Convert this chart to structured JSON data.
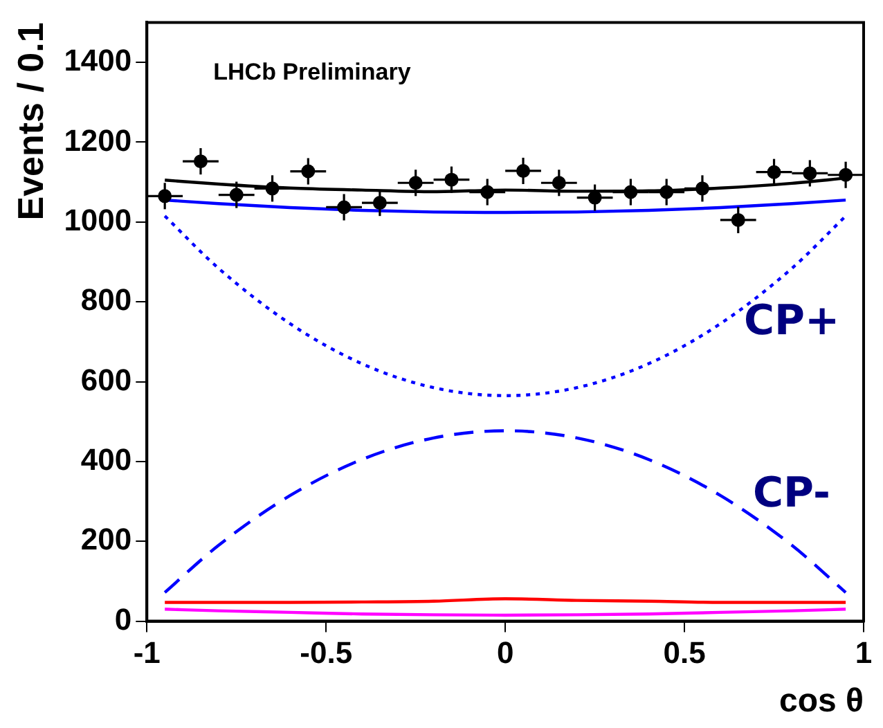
{
  "chart_data": {
    "type": "scatter",
    "xlabel": "cos θ",
    "ylabel": "Events / 0.1",
    "xlim": [
      -1,
      1
    ],
    "xticks": [
      -1,
      -0.5,
      0,
      0.5,
      1
    ],
    "ylim": [
      0,
      1500
    ],
    "yticks": [
      0,
      200,
      400,
      600,
      800,
      1000,
      1200,
      1400
    ],
    "grid": false,
    "legend": false,
    "marker": "circle",
    "annotations": [
      "LHCb Preliminary"
    ],
    "series": [
      {
        "type": "line",
        "color": "#000000",
        "line_style": "solid",
        "marker": "none",
        "x": [
          -0.95,
          -0.8,
          -0.6,
          -0.4,
          -0.2,
          0,
          0.2,
          0.4,
          0.6,
          0.8,
          0.95
        ],
        "values": [
          1105,
          1095,
          1085,
          1080,
          1076,
          1080,
          1077,
          1078,
          1085,
          1097,
          1110
        ]
      },
      {
        "type": "line",
        "color": "#0000ff",
        "line_style": "solid",
        "marker": "none",
        "x": [
          -0.95,
          -0.8,
          -0.6,
          -0.4,
          -0.2,
          0,
          0.2,
          0.4,
          0.6,
          0.8,
          0.95
        ],
        "values": [
          1055,
          1046,
          1036,
          1029,
          1025,
          1024,
          1025,
          1029,
          1036,
          1046,
          1055
        ]
      },
      {
        "type": "line",
        "name": "CP+",
        "color": "#0000ff",
        "line_style": "dotted",
        "marker": "none",
        "x": [
          -0.95,
          -0.8,
          -0.6,
          -0.4,
          -0.2,
          0,
          0.2,
          0.4,
          0.6,
          0.8,
          0.95
        ],
        "values": [
          1015,
          884,
          745,
          645,
          585,
          565,
          585,
          645,
          745,
          884,
          1015
        ]
      },
      {
        "type": "line",
        "name": "CP-",
        "color": "#0000ff",
        "line_style": "dashed",
        "marker": "none",
        "x": [
          -0.95,
          -0.8,
          -0.6,
          -0.4,
          -0.2,
          0,
          0.2,
          0.4,
          0.6,
          0.8,
          0.95
        ],
        "values": [
          72,
          190,
          315,
          405,
          459,
          477,
          459,
          405,
          315,
          190,
          72
        ]
      },
      {
        "type": "line",
        "color": "#ff0000",
        "line_style": "solid",
        "marker": "none",
        "x": [
          -0.95,
          -0.8,
          -0.6,
          -0.4,
          -0.2,
          0,
          0.2,
          0.4,
          0.6,
          0.8,
          0.95
        ],
        "values": [
          47,
          47,
          47,
          48,
          50,
          56,
          52,
          50,
          47,
          47,
          47
        ]
      },
      {
        "type": "line",
        "color": "#ff00ff",
        "line_style": "solid",
        "marker": "none",
        "x": [
          -0.95,
          -0.8,
          -0.6,
          -0.4,
          -0.2,
          0,
          0.2,
          0.4,
          0.6,
          0.8,
          0.95
        ],
        "values": [
          30,
          26,
          22,
          18,
          16,
          15,
          16,
          18,
          22,
          26,
          30
        ]
      },
      {
        "color": "#000000",
        "x": [
          -0.95,
          -0.85,
          -0.75,
          -0.65,
          -0.55,
          -0.45,
          -0.35,
          -0.25,
          -0.15,
          -0.05,
          0.05,
          0.15,
          0.25,
          0.35,
          0.45,
          0.55,
          0.65,
          0.75,
          0.85,
          0.95
        ],
        "values": [
          1065,
          1152,
          1068,
          1084,
          1127,
          1037,
          1048,
          1098,
          1106,
          1075,
          1128,
          1098,
          1061,
          1075,
          1075,
          1084,
          1005,
          1125,
          1122,
          1118
        ],
        "errors": [
          33,
          33,
          33,
          33,
          33,
          33,
          33,
          33,
          33,
          33,
          33,
          33,
          33,
          33,
          33,
          33,
          33,
          33,
          33,
          33
        ],
        "xerrors": [
          0.05,
          0.05,
          0.05,
          0.05,
          0.05,
          0.05,
          0.05,
          0.05,
          0.05,
          0.05,
          0.05,
          0.05,
          0.05,
          0.05,
          0.05,
          0.05,
          0.05,
          0.05,
          0.05,
          0.05
        ]
      }
    ]
  }
}
